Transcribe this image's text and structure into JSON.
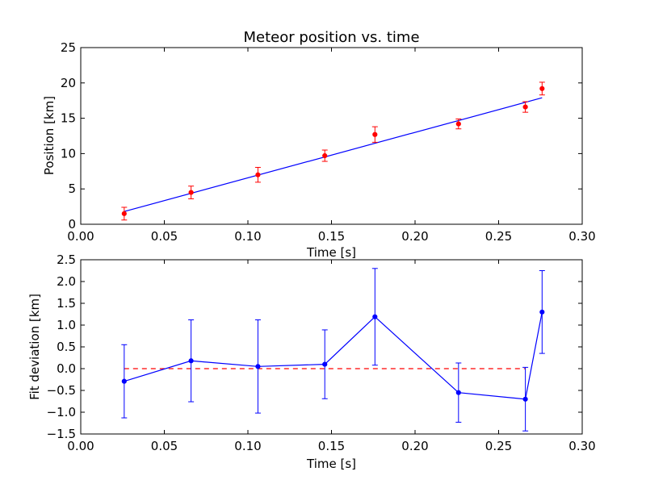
{
  "chart_data": [
    {
      "type": "scatter",
      "title": "Meteor position vs. time",
      "xlabel": "Time [s]",
      "ylabel": "Position [km]",
      "xlim": [
        0.0,
        0.3
      ],
      "ylim": [
        0,
        25
      ],
      "xticks": [
        "0.00",
        "0.05",
        "0.10",
        "0.15",
        "0.20",
        "0.25",
        "0.30"
      ],
      "yticks": [
        "0",
        "5",
        "10",
        "15",
        "20",
        "25"
      ],
      "grid": false,
      "colors": {
        "points": "#ff0000",
        "fit": "#0000ff"
      },
      "points": {
        "x": [
          0.026,
          0.066,
          0.106,
          0.146,
          0.176,
          0.226,
          0.266,
          0.276
        ],
        "y": [
          1.5,
          4.5,
          7.0,
          9.7,
          12.7,
          14.2,
          16.6,
          19.2
        ],
        "err": [
          0.9,
          0.9,
          1.05,
          0.8,
          1.1,
          0.7,
          0.75,
          0.9
        ]
      },
      "fit_line": {
        "x": [
          0.026,
          0.276
        ],
        "y": [
          1.8,
          17.9
        ]
      }
    },
    {
      "type": "line",
      "title": "",
      "xlabel": "Time [s]",
      "ylabel": "Fit deviation [km]",
      "xlim": [
        0.0,
        0.3
      ],
      "ylim": [
        -1.5,
        2.5
      ],
      "xticks": [
        "0.00",
        "0.05",
        "0.10",
        "0.15",
        "0.20",
        "0.25",
        "0.30"
      ],
      "yticks": [
        "−1.5",
        "−1.0",
        "−0.5",
        "0.0",
        "0.5",
        "1.0",
        "1.5",
        "2.0",
        "2.5"
      ],
      "grid": false,
      "colors": {
        "series": "#0000ff",
        "zero_line": "#ff0000"
      },
      "series": {
        "x": [
          0.026,
          0.066,
          0.106,
          0.146,
          0.176,
          0.226,
          0.266,
          0.276
        ],
        "y": [
          -0.29,
          0.18,
          0.05,
          0.1,
          1.19,
          -0.55,
          -0.7,
          1.3
        ],
        "err": [
          0.84,
          0.94,
          1.07,
          0.79,
          1.11,
          0.68,
          0.73,
          0.95
        ]
      },
      "reference_line": {
        "y": 0.0,
        "x": [
          0.026,
          0.266
        ],
        "style": "dashed"
      }
    }
  ]
}
